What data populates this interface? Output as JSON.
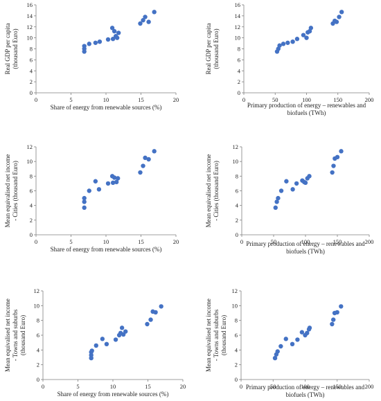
{
  "chart_data": [
    {
      "type": "scatter",
      "ylabel": [
        "Real GDP per capita",
        "(thousand Euro)"
      ],
      "xlabel": [
        "Share of energy from renewable sources (%)"
      ],
      "xlim": [
        0,
        20
      ],
      "ylim": [
        0,
        16
      ],
      "xticks": [
        0,
        5,
        10,
        15,
        20
      ],
      "yticks": [
        0,
        2,
        4,
        6,
        8,
        10,
        12,
        14,
        16
      ],
      "x": [
        6.9,
        6.9,
        6.9,
        7.6,
        8.5,
        9.1,
        10.3,
        10.9,
        11.0,
        11.2,
        11.4,
        11.6,
        11.8,
        14.9,
        15.3,
        15.6,
        16.1,
        16.9
      ],
      "y": [
        7.5,
        8.0,
        8.5,
        8.9,
        9.1,
        9.3,
        9.7,
        11.8,
        9.8,
        11.2,
        10.3,
        10.0,
        10.9,
        12.6,
        13.2,
        13.8,
        12.9,
        14.7
      ]
    },
    {
      "type": "scatter",
      "ylabel": [
        "Real GDP per capita",
        "(thousand Euro)"
      ],
      "xlabel": [
        "Primary production of energy – renewables and",
        "biofuels (TWh)"
      ],
      "xlim": [
        0,
        200
      ],
      "ylim": [
        0,
        16
      ],
      "xticks": [
        0,
        50,
        100,
        150,
        200
      ],
      "yticks": [
        0,
        2,
        4,
        6,
        8,
        10,
        12,
        14,
        16
      ],
      "x": [
        53,
        55,
        57,
        63,
        70,
        78,
        85,
        95,
        100,
        102,
        105,
        107,
        142,
        145,
        148,
        152,
        156
      ],
      "y": [
        7.5,
        8.0,
        8.6,
        8.9,
        9.1,
        9.3,
        9.8,
        10.5,
        10.0,
        11.0,
        11.2,
        11.8,
        12.6,
        13.1,
        12.9,
        13.8,
        14.7
      ]
    },
    {
      "type": "scatter",
      "ylabel": [
        "Mean equivalised net income",
        "- Cities (thousand Euro)"
      ],
      "xlabel": [
        "Share of energy from renewable sources (%)"
      ],
      "xlim": [
        0,
        20
      ],
      "ylim": [
        0,
        12
      ],
      "xticks": [
        0,
        5,
        10,
        15,
        20
      ],
      "yticks": [
        0,
        2,
        4,
        6,
        8,
        10,
        12
      ],
      "x": [
        6.9,
        6.9,
        6.9,
        7.6,
        8.5,
        9.0,
        10.3,
        10.9,
        11.0,
        11.2,
        11.5,
        11.7,
        14.9,
        15.3,
        15.6,
        16.1,
        16.9
      ],
      "y": [
        3.7,
        4.5,
        5.0,
        6.0,
        7.3,
        6.2,
        7.0,
        8.0,
        7.1,
        7.8,
        7.2,
        7.7,
        8.5,
        9.4,
        10.5,
        10.3,
        11.4
      ]
    },
    {
      "type": "scatter",
      "ylabel": [
        "Mean equivalised net income",
        "- Cities (thousand Euro)"
      ],
      "xlabel": [
        "Primary production of energy – renewables and",
        "biofuels (TWh)"
      ],
      "xlim": [
        0,
        200
      ],
      "ylim": [
        0,
        12
      ],
      "xticks": [
        0,
        50,
        100,
        150,
        200
      ],
      "yticks": [
        0,
        2,
        4,
        6,
        8,
        10,
        12
      ],
      "x": [
        53,
        55,
        57,
        62,
        70,
        80,
        86,
        95,
        98,
        100,
        103,
        106,
        142,
        144,
        146,
        150,
        156
      ],
      "y": [
        3.7,
        4.5,
        5.0,
        6.0,
        7.3,
        6.2,
        7.0,
        7.4,
        7.2,
        7.1,
        7.7,
        8.0,
        8.5,
        9.4,
        10.4,
        10.6,
        11.4
      ]
    },
    {
      "type": "scatter",
      "ylabel": [
        "Mean equivalised net income",
        "- Towns and suburbs",
        "(thousand Euro)"
      ],
      "xlabel": [
        "Share of energy from renewable sources (%)"
      ],
      "xlim": [
        0,
        20
      ],
      "ylim": [
        0,
        12
      ],
      "xticks": [
        0,
        5,
        10,
        15,
        20
      ],
      "yticks": [
        0,
        2,
        4,
        6,
        8,
        10,
        12
      ],
      "x": [
        6.9,
        6.9,
        6.9,
        7.0,
        7.6,
        8.5,
        9.1,
        10.4,
        10.9,
        11.1,
        11.3,
        11.5,
        11.8,
        14.9,
        15.4,
        15.7,
        16.1,
        16.9
      ],
      "y": [
        2.9,
        3.3,
        3.7,
        3.9,
        4.6,
        5.5,
        4.8,
        5.4,
        6.0,
        6.3,
        7.0,
        6.1,
        6.5,
        7.5,
        8.1,
        9.2,
        9.1,
        9.9
      ]
    },
    {
      "type": "scatter",
      "ylabel": [
        "Mean equivalised net income",
        "- Towns and suburbs",
        "(thousand Euro)"
      ],
      "xlabel": [
        "Primary production of energy – renewables and",
        "biofuels (TWh)"
      ],
      "xlim": [
        0,
        200
      ],
      "ylim": [
        0,
        12
      ],
      "xticks": [
        0,
        50,
        100,
        150,
        200
      ],
      "yticks": [
        0,
        2,
        4,
        6,
        8,
        10,
        12
      ],
      "x": [
        53,
        55,
        57,
        62,
        70,
        80,
        88,
        95,
        100,
        103,
        106,
        107,
        142,
        144,
        146,
        150,
        156
      ],
      "y": [
        2.9,
        3.4,
        3.8,
        4.5,
        5.5,
        4.8,
        5.4,
        6.4,
        6.0,
        6.3,
        6.8,
        7.0,
        7.5,
        8.1,
        9.0,
        9.1,
        9.9
      ]
    }
  ],
  "colors": {
    "marker": "#4472c4",
    "axis": "#7f7f7f",
    "text": "#222222"
  }
}
